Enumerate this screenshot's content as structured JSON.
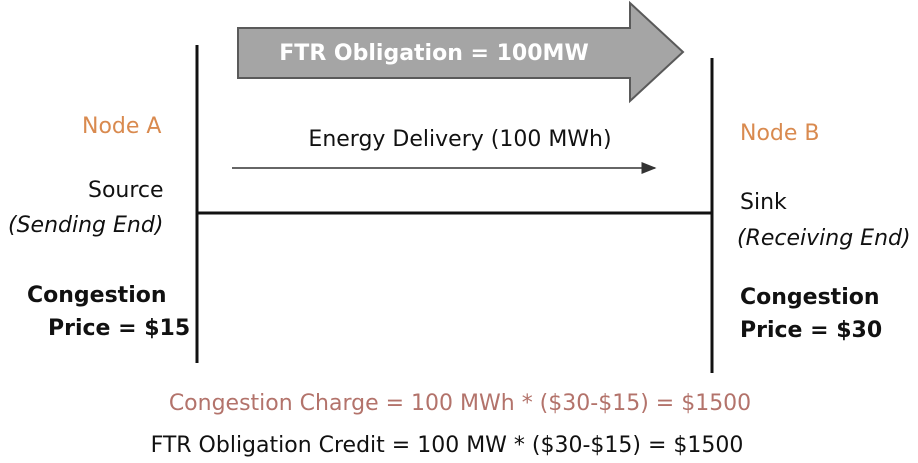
{
  "arrow_label": "FTR Obligation = 100MW",
  "energy_label": "Energy Delivery (100 MWh)",
  "node_a": {
    "name": "Node A",
    "role": "Source",
    "role_detail": "(Sending End)",
    "price_line1": "Congestion",
    "price_line2": "Price = $15"
  },
  "node_b": {
    "name": "Node B",
    "role": "Sink",
    "role_detail": "(Receiving End)",
    "price_line1": "Congestion",
    "price_line2": "Price = $30"
  },
  "congestion_charge": "Congestion Charge = 100 MWh * ($30-$15) = $1500",
  "ftr_credit": "FTR Obligation Credit = 100 MW * ($30-$15) = $1500"
}
